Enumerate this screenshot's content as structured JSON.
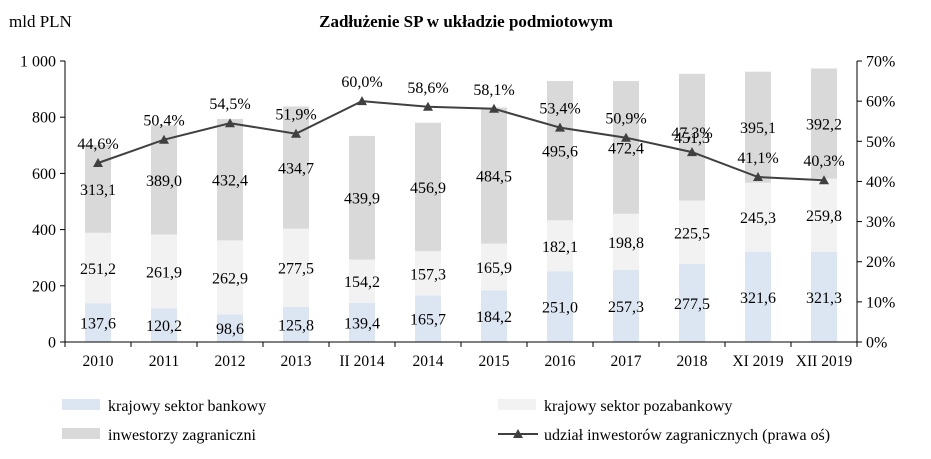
{
  "chart_data": {
    "type": "bar",
    "stacked": true,
    "title": "Zadłużenie SP w układzie podmiotowym",
    "ylabel": "mld PLN",
    "ylim": [
      0,
      1000
    ],
    "yticks": [
      "0",
      "200",
      "400",
      "600",
      "800",
      "1 000"
    ],
    "y2lim": [
      0,
      70
    ],
    "y2ticks": [
      "0%",
      "10%",
      "20%",
      "30%",
      "40%",
      "50%",
      "60%",
      "70%"
    ],
    "categories": [
      "2010",
      "2011",
      "2012",
      "2013",
      "II 2014",
      "2014",
      "2015",
      "2016",
      "2017",
      "2018",
      "XI 2019",
      "XII 2019"
    ],
    "series": [
      {
        "name": "krajowy sektor bankowy",
        "color": "#dce6f2",
        "values": [
          137.6,
          120.2,
          98.6,
          125.8,
          139.4,
          165.7,
          184.2,
          251.0,
          257.3,
          277.5,
          321.6,
          321.3
        ],
        "labels": [
          "137,6",
          "120,2",
          "98,6",
          "125,8",
          "139,4",
          "165,7",
          "184,2",
          "251,0",
          "257,3",
          "277,5",
          "321,6",
          "321,3"
        ]
      },
      {
        "name": "krajowy sektor pozabankowy",
        "color": "#f2f2f2",
        "values": [
          251.2,
          261.9,
          262.9,
          277.5,
          154.2,
          157.3,
          165.9,
          182.1,
          198.8,
          225.5,
          245.3,
          259.8
        ],
        "labels": [
          "251,2",
          "261,9",
          "262,9",
          "277,5",
          "154,2",
          "157,3",
          "165,9",
          "182,1",
          "198,8",
          "225,5",
          "245,3",
          "259,8"
        ]
      },
      {
        "name": "inwestorzy zagraniczni",
        "color": "#d9d9d9",
        "values": [
          313.1,
          389.0,
          432.4,
          434.7,
          439.9,
          456.9,
          484.5,
          495.6,
          472.4,
          451.3,
          395.1,
          392.2
        ],
        "labels": [
          "313,1",
          "389,0",
          "432,4",
          "434,7",
          "439,9",
          "456,9",
          "484,5",
          "495,6",
          "472,4",
          "451,3",
          "395,1",
          "392,2"
        ]
      }
    ],
    "line": {
      "name": "udział inwestorów zagranicznych (prawa oś)",
      "axis": "right",
      "color": "#404040",
      "values": [
        44.6,
        50.4,
        54.5,
        51.9,
        60.0,
        58.6,
        58.1,
        53.4,
        50.9,
        47.3,
        41.1,
        40.3
      ],
      "labels": [
        "44,6%",
        "50,4%",
        "54,5%",
        "51,9%",
        "60,0%",
        "58,6%",
        "58,1%",
        "53,4%",
        "50,9%",
        "47,3%",
        "41,1%",
        "40,3%"
      ]
    },
    "legend": "bottom",
    "grid": false
  }
}
